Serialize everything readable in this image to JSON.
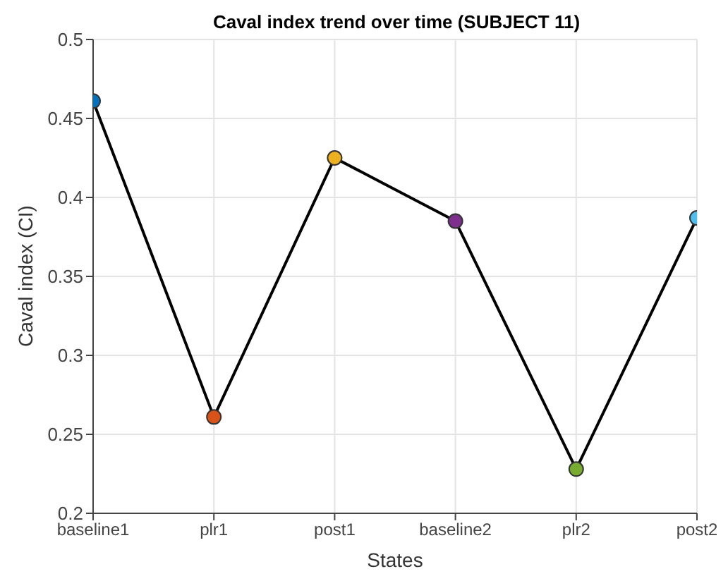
{
  "chart_data": {
    "type": "line",
    "title": "Caval index trend over time (SUBJECT 11)",
    "xlabel": "States",
    "ylabel": "Caval index (CI)",
    "categories": [
      "baseline1",
      "plr1",
      "post1",
      "baseline2",
      "plr2",
      "post2"
    ],
    "series": [
      {
        "color": "#000000",
        "colors": [
          "#0072bd",
          "#d95319",
          "#edb120",
          "#7e2f8e",
          "#77ac30",
          "#4dbeee"
        ],
        "values": [
          0.461,
          0.261,
          0.425,
          0.385,
          0.228,
          0.387
        ]
      }
    ],
    "ylim": [
      0.2,
      0.5
    ],
    "yticks": [
      0.2,
      0.25,
      0.3,
      0.35,
      0.4,
      0.45,
      0.5
    ],
    "grid": true,
    "marker": "circle",
    "line_style": "solid",
    "legend": false
  }
}
